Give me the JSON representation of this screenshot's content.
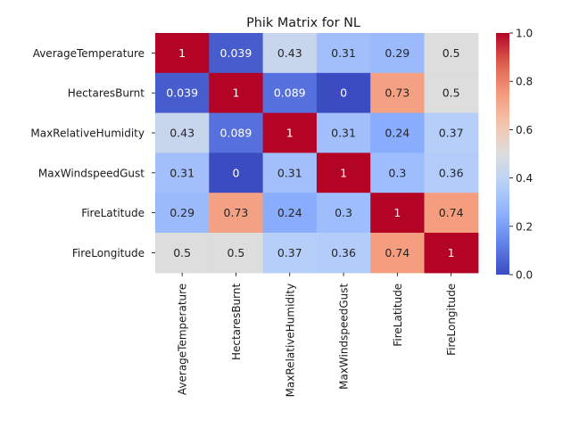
{
  "chart_data": {
    "type": "heatmap",
    "title": "Phik Matrix for NL",
    "xlabel": "",
    "ylabel": "",
    "row_labels": [
      "AverageTemperature",
      "HectaresBurnt",
      "MaxRelativeHumidity",
      "MaxWindspeedGust",
      "FireLatitude",
      "FireLongitude"
    ],
    "col_labels": [
      "AverageTemperature",
      "HectaresBurnt",
      "MaxRelativeHumidity",
      "MaxWindspeedGust",
      "FireLatitude",
      "FireLongitude"
    ],
    "values": [
      [
        1,
        0.039,
        0.43,
        0.31,
        0.29,
        0.5
      ],
      [
        0.039,
        1,
        0.089,
        0,
        0.73,
        0.5
      ],
      [
        0.43,
        0.089,
        1,
        0.31,
        0.24,
        0.37
      ],
      [
        0.31,
        0,
        0.31,
        1,
        0.3,
        0.36
      ],
      [
        0.29,
        0.73,
        0.24,
        0.3,
        1,
        0.74
      ],
      [
        0.5,
        0.5,
        0.37,
        0.36,
        0.74,
        1
      ]
    ],
    "colormap": "coolwarm",
    "vmin": 0,
    "vmax": 1,
    "colorbar_ticks": [
      "0.0",
      "0.2",
      "0.4",
      "0.6",
      "0.8",
      "1.0"
    ],
    "annotations": true,
    "grid": false
  }
}
